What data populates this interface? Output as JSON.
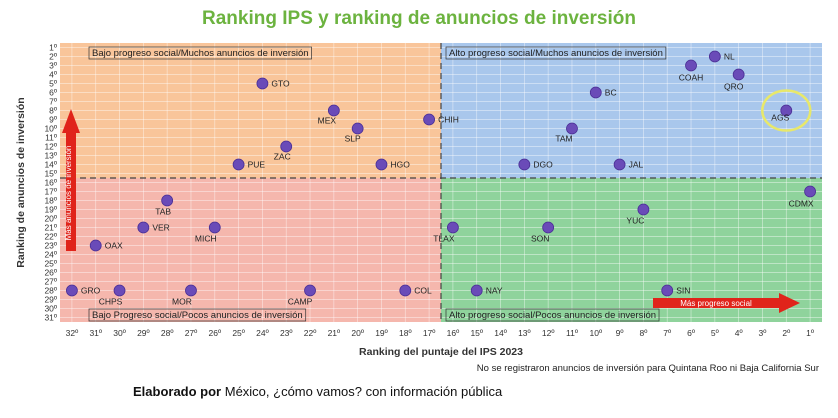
{
  "colors": {
    "title": "#6cb33f",
    "q_top_left": "#f9c59a",
    "q_top_right": "#a9c7ec",
    "q_bottom_left": "#f5b7ad",
    "q_bottom_right": "#8fd39c",
    "point": "#6a4bb8",
    "arrow": "#e0241b",
    "highlight": "#e8e86a"
  },
  "chart_data": {
    "type": "scatter",
    "title": "Ranking IPS y ranking de anuncios de inversión",
    "xlabel": "Ranking del puntaje del IPS 2023",
    "ylabel": "Ranking de anuncios de inversión",
    "x_ticks": [
      "32º",
      "31º",
      "30º",
      "29º",
      "28º",
      "27º",
      "26º",
      "25º",
      "24º",
      "23º",
      "22º",
      "21º",
      "20º",
      "19º",
      "18º",
      "17º",
      "16º",
      "15º",
      "14º",
      "13º",
      "12º",
      "11º",
      "10º",
      "9º",
      "8º",
      "7º",
      "6º",
      "5º",
      "4º",
      "3º",
      "2º",
      "1º"
    ],
    "y_ticks": [
      "1º",
      "2º",
      "3º",
      "4º",
      "5º",
      "6º",
      "7º",
      "8º",
      "9º",
      "10º",
      "11º",
      "12º",
      "13º",
      "14º",
      "15º",
      "16º",
      "17º",
      "18º",
      "19º",
      "20º",
      "21º",
      "22º",
      "23º",
      "24º",
      "25º",
      "26º",
      "27º",
      "28º",
      "29º",
      "30º",
      "31º"
    ],
    "xlim": [
      32.5,
      0.5
    ],
    "ylim": [
      31.5,
      0.5
    ],
    "x_reversed": true,
    "y_reversed": true,
    "quadrant_divider": {
      "x": 16.5,
      "y": 15.5
    },
    "quadrants": {
      "top_left": "Bajo progreso social/Muchos anuncios de inversión",
      "top_right": "Alto progreso social/Muchos anuncios de inversión",
      "bottom_left": "Bajo Progreso social/Pocos anuncios de inversión",
      "bottom_right": "Alto progreso social/Pocos anuncios de inversión"
    },
    "arrow_labels": {
      "vertical": "Más anuncios de inversión",
      "horizontal": "Más progreso social"
    },
    "points": [
      {
        "label": "NL",
        "x": 5,
        "y": 2
      },
      {
        "label": "COAH",
        "x": 6,
        "y": 3
      },
      {
        "label": "QRO",
        "x": 4,
        "y": 4
      },
      {
        "label": "GTO",
        "x": 24,
        "y": 5
      },
      {
        "label": "BC",
        "x": 10,
        "y": 6
      },
      {
        "label": "MEX",
        "x": 21,
        "y": 8
      },
      {
        "label": "AGS",
        "x": 2,
        "y": 8
      },
      {
        "label": "CHIH",
        "x": 17,
        "y": 9
      },
      {
        "label": "SLP",
        "x": 20,
        "y": 10
      },
      {
        "label": "TAM",
        "x": 11,
        "y": 10
      },
      {
        "label": "ZAC",
        "x": 23,
        "y": 12
      },
      {
        "label": "PUE",
        "x": 25,
        "y": 14
      },
      {
        "label": "HGO",
        "x": 19,
        "y": 14
      },
      {
        "label": "DGO",
        "x": 13,
        "y": 14
      },
      {
        "label": "JAL",
        "x": 9,
        "y": 14
      },
      {
        "label": "CDMX",
        "x": 1,
        "y": 17
      },
      {
        "label": "TAB",
        "x": 28,
        "y": 18
      },
      {
        "label": "YUC",
        "x": 8,
        "y": 19
      },
      {
        "label": "VER",
        "x": 29,
        "y": 21
      },
      {
        "label": "MICH",
        "x": 26,
        "y": 21
      },
      {
        "label": "TLAX",
        "x": 16,
        "y": 21
      },
      {
        "label": "SON",
        "x": 12,
        "y": 21
      },
      {
        "label": "OAX",
        "x": 31,
        "y": 23
      },
      {
        "label": "GRO",
        "x": 32,
        "y": 28
      },
      {
        "label": "CHPS",
        "x": 30,
        "y": 28
      },
      {
        "label": "MOR",
        "x": 27,
        "y": 28
      },
      {
        "label": "CAMP",
        "x": 22,
        "y": 28
      },
      {
        "label": "COL",
        "x": 18,
        "y": 28
      },
      {
        "label": "NAY",
        "x": 15,
        "y": 28
      },
      {
        "label": "SIN",
        "x": 7,
        "y": 28
      }
    ],
    "highlighted": "AGS"
  },
  "note": "No se registraron anuncios de inversión para Quintana Roo ni Baja California Sur",
  "credit": {
    "bold": "Elaborado por",
    "rest": " México, ¿cómo vamos? con información pública"
  }
}
